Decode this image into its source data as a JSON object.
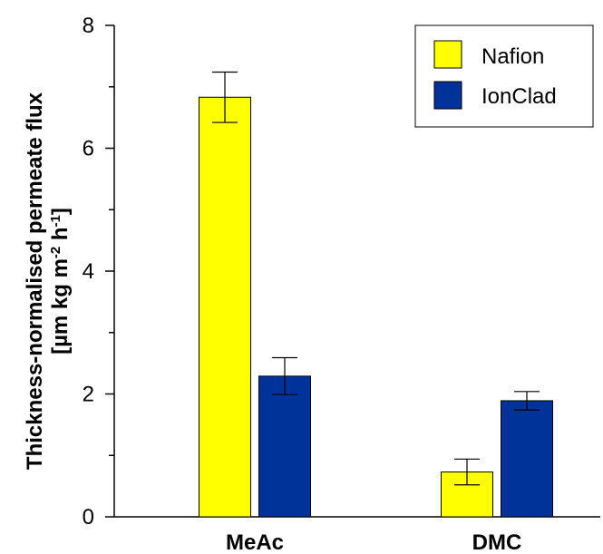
{
  "chart_data": {
    "type": "bar",
    "categories": [
      "MeAc",
      "DMC"
    ],
    "series": [
      {
        "name": "Nafion",
        "color": "#ffff00",
        "values": [
          6.83,
          0.73
        ],
        "errors": [
          0.41,
          0.21
        ]
      },
      {
        "name": "IonClad",
        "color": "#003399",
        "values": [
          2.29,
          1.89
        ],
        "errors": [
          0.3,
          0.15
        ]
      }
    ],
    "title": "",
    "xlabel": "",
    "ylabel": {
      "line1": "Thickness-normalised permeate flux",
      "line2_prefix": "[µm kg m",
      "line2_sup1": "-2",
      "line2_mid": " h",
      "line2_sup2": "-1",
      "line2_suffix": "]"
    },
    "ylim": [
      0,
      8
    ],
    "yticks_major": [
      0,
      2,
      4,
      6,
      8
    ],
    "yticks_minor": [
      1,
      3,
      5,
      7
    ],
    "grid": false,
    "legend": {
      "placement": "top-right"
    }
  }
}
